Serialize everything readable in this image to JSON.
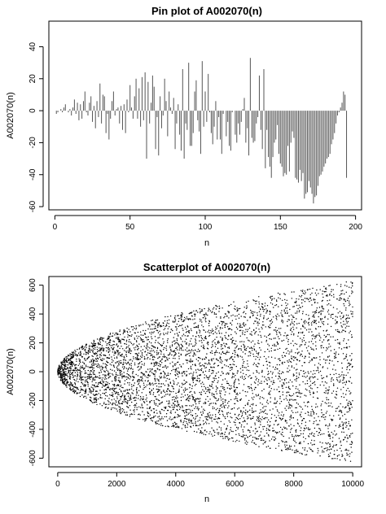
{
  "chart_data": [
    {
      "type": "pin",
      "title": "Pin plot of A002070(n)",
      "xlabel": "n",
      "ylabel": "A002070(n)",
      "xlim": [
        -4,
        204
      ],
      "ylim": [
        -62,
        56
      ],
      "xticks": [
        0,
        50,
        100,
        150,
        200
      ],
      "yticks": [
        -60,
        -40,
        -20,
        0,
        20,
        40
      ],
      "grid": false,
      "legend": "none",
      "color": "#000000",
      "series": [
        {
          "x_start": 1,
          "x_step": 1,
          "values": [
            -2,
            -1,
            0,
            1,
            -1,
            2,
            4,
            0,
            -1,
            1,
            -3,
            2,
            7,
            -2,
            5,
            -6,
            4,
            -5,
            6,
            12,
            -1,
            -3,
            5,
            9,
            -7,
            3,
            -11,
            6,
            -4,
            17,
            -8,
            10,
            9,
            -14,
            -2,
            -18,
            -5,
            6,
            12,
            -3,
            1,
            2,
            -8,
            3,
            -12,
            4,
            -14,
            7,
            -1,
            16,
            2,
            -5,
            9,
            20,
            -5,
            14,
            -10,
            21,
            -6,
            24,
            -30,
            18,
            -8,
            5,
            22,
            15,
            -24,
            -4,
            -28,
            9,
            -11,
            -3,
            20,
            6,
            -16,
            12,
            2,
            -2,
            8,
            -24,
            -8,
            4,
            -15,
            -25,
            26,
            -30,
            -8,
            -12,
            30,
            -22,
            -22,
            -14,
            12,
            19,
            -6,
            -13,
            -27,
            31,
            -10,
            12,
            -7,
            23,
            -1,
            -14,
            -21,
            -10,
            6,
            -18,
            -4,
            -18,
            -27,
            -2,
            0,
            -16,
            -7,
            -22,
            -25,
            -1,
            0,
            -15,
            -20,
            -8,
            -15,
            -7,
            1,
            8,
            -20,
            -11,
            -28,
            33,
            -17,
            -20,
            -19,
            -8,
            -4,
            22,
            -12,
            -24,
            26,
            -36,
            -12,
            -29,
            -35,
            -42,
            -29,
            -20,
            -18,
            -9,
            -27,
            -33,
            -35,
            -41,
            -39,
            -40,
            -22,
            -38,
            -20,
            -13,
            -17,
            -42,
            -43,
            -45,
            -37,
            -44,
            -39,
            -55,
            -52,
            -51,
            -44,
            -48,
            -52,
            -58,
            -54,
            -53,
            -47,
            -41,
            -40,
            -38,
            -35,
            -33,
            -30,
            -29,
            -27,
            -21,
            -18,
            -14,
            -8,
            -3,
            -1,
            2,
            5,
            12,
            10,
            -42
          ]
        }
      ]
    },
    {
      "type": "scatter",
      "title": "Scatterplot of A002070(n)",
      "xlabel": "n",
      "ylabel": "A002070(n)",
      "xlim": [
        -300,
        10300
      ],
      "ylim": [
        -660,
        660
      ],
      "xticks": [
        0,
        2000,
        4000,
        6000,
        8000,
        10000
      ],
      "yticks": [
        -600,
        -400,
        -200,
        0,
        200,
        400,
        600
      ],
      "grid": false,
      "legend": "none",
      "color": "#000000",
      "n_points": 10000,
      "envelope": "A002070(n) lies between about -6.3*sqrt(n) and +6.3*sqrt(n); the points fill a sideways parabola opening to the right, densest near n=0"
    }
  ]
}
